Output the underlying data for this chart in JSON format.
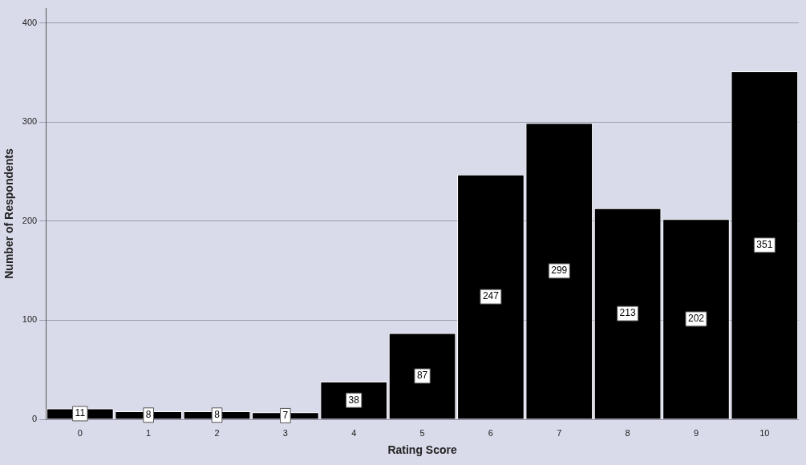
{
  "chart_data": {
    "type": "bar",
    "xlabel": "Rating Score",
    "ylabel": "Number of Respondents",
    "categories": [
      "0",
      "1",
      "2",
      "3",
      "4",
      "5",
      "6",
      "7",
      "8",
      "9",
      "10"
    ],
    "values": [
      11,
      8,
      8,
      7,
      38,
      87,
      247,
      299,
      213,
      202,
      351
    ],
    "color": "#000000",
    "ylim": [
      0,
      415
    ],
    "yticks": [
      0,
      100,
      200,
      300,
      400
    ],
    "grid": "y",
    "data_labels": true
  }
}
